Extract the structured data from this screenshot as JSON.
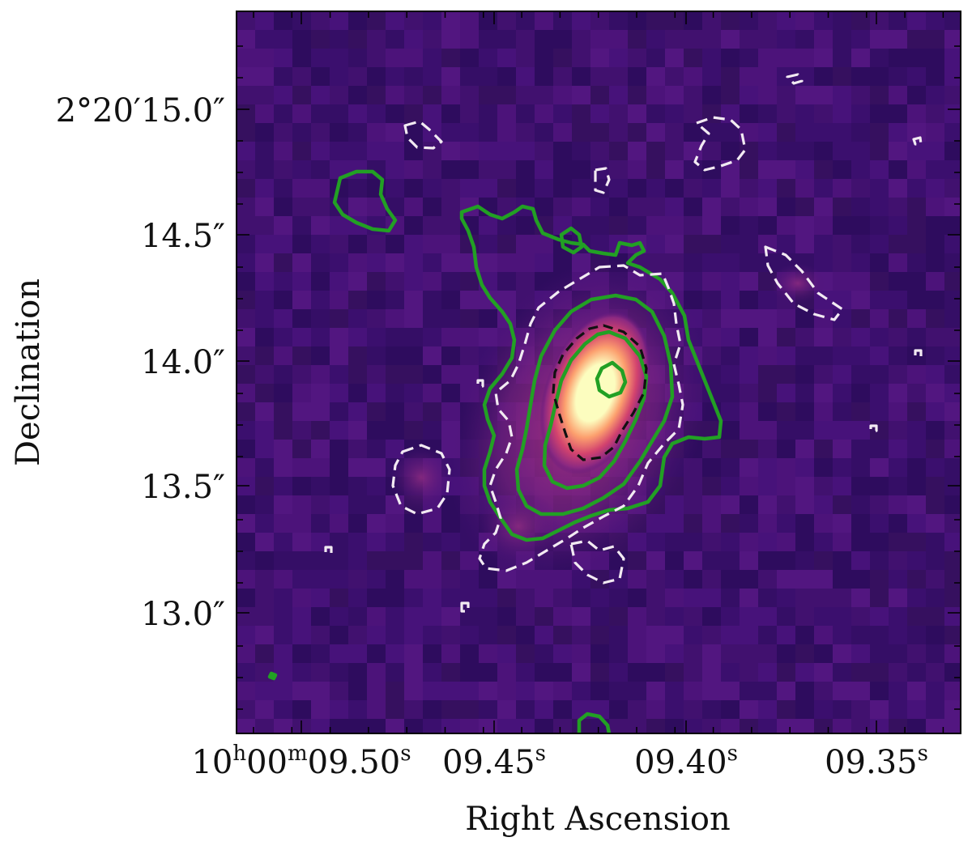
{
  "figure": {
    "xlabel": "Right Ascension",
    "ylabel": "Declination",
    "colormap": "magma",
    "x_ticks": [
      {
        "h": "10",
        "m": "00",
        "main": "09.50",
        "suffix": "s",
        "prefix_form": true
      },
      {
        "main": "09.45",
        "suffix": "s"
      },
      {
        "main": "09.40",
        "suffix": "s"
      },
      {
        "main": "09.35",
        "suffix": "s"
      }
    ],
    "y_ticks": [
      "2°20′15.0″",
      "14.5″",
      "14.0″",
      "13.5″",
      "13.0″"
    ],
    "x_prefix": {
      "h_label": "h",
      "m_label": "m"
    },
    "colors": {
      "background_dark": "#3b0f6e",
      "contour_green": "#22a024",
      "contour_white_dashed": "#f2eaf2",
      "contour_black_dashed": "#111111",
      "peak": "#fcfdbf"
    }
  }
}
